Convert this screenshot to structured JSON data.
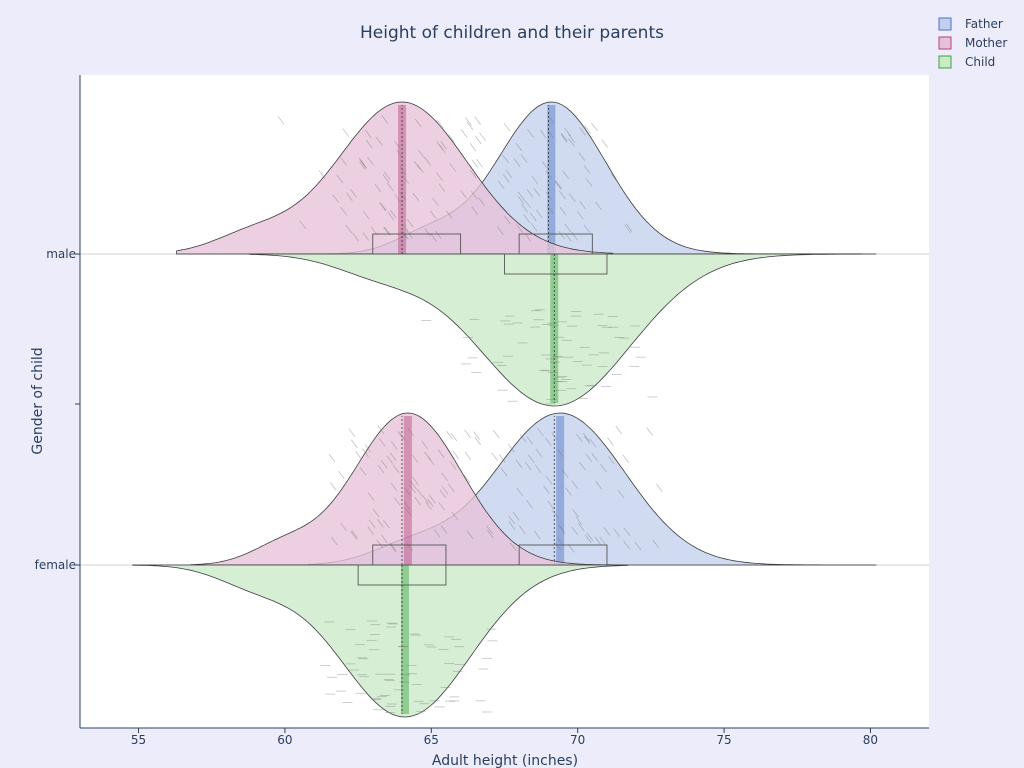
{
  "chart_data": {
    "type": "violin",
    "title": "Height of children and their parents",
    "xlabel": "Adult height (inches)",
    "ylabel": "Gender of child",
    "xlim": [
      53,
      82
    ],
    "x_ticks": [
      55,
      60,
      65,
      70,
      75,
      80
    ],
    "categories": [
      "male",
      "female"
    ],
    "legend_position": "top-right",
    "grid": false,
    "series": [
      {
        "name": "Father",
        "color": "#4a72c4",
        "fill": "#c3d0ec",
        "side": "positive",
        "groups": [
          {
            "category": "male",
            "range": [
              62,
              78.5
            ],
            "q1": 68,
            "median": 69,
            "q3": 70.5,
            "mean": 69.1
          },
          {
            "category": "female",
            "range": [
              62,
              79
            ],
            "q1": 68,
            "median": 69.2,
            "q3": 71,
            "mean": 69.4
          }
        ]
      },
      {
        "name": "Mother",
        "color": "#b5447c",
        "fill": "#e7c1d8",
        "side": "positive",
        "groups": [
          {
            "category": "male",
            "range": [
              57.5,
              70
            ],
            "q1": 63,
            "median": 64,
            "q3": 66,
            "mean": 64
          },
          {
            "category": "female",
            "range": [
              58,
              70
            ],
            "q1": 63,
            "median": 64,
            "q3": 65.5,
            "mean": 64.2
          }
        ]
      },
      {
        "name": "Child",
        "color": "#39a23d",
        "fill": "#cbeac8",
        "side": "negative",
        "groups": [
          {
            "category": "male",
            "range": [
              60,
              79
            ],
            "q1": 67.5,
            "median": 69.2,
            "q3": 71,
            "mean": 69.2
          },
          {
            "category": "female",
            "range": [
              56,
              70.5
            ],
            "q1": 62.5,
            "median": 64,
            "q3": 65.5,
            "mean": 64.1
          }
        ]
      }
    ]
  }
}
